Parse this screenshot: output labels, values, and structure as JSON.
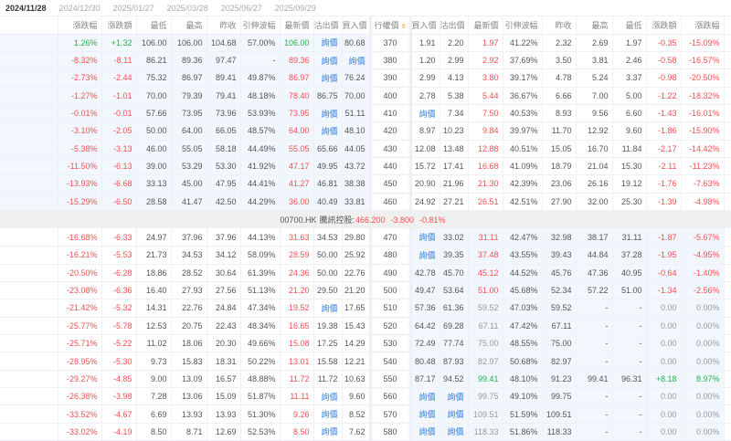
{
  "tabs": [
    "2024/11/28",
    "2024/12/30",
    "2025/01/27",
    "2025/03/28",
    "2025/06/27",
    "2025/09/29"
  ],
  "active_tab": 0,
  "colors": {
    "up": "#21b14b",
    "down": "#f25050",
    "link": "#2f7de1",
    "itm_bg": "#f2f7fd",
    "sort": "#f59a23"
  },
  "headers": {
    "calls": [
      "漲跌幅",
      "漲跌額",
      "最低",
      "最高",
      "昨收",
      "引伸波幅",
      "最新價",
      "沽出價",
      "買入價"
    ],
    "strike": "行權價",
    "puts": [
      "買入價",
      "沽出價",
      "最新價",
      "引伸波幅",
      "昨收",
      "最高",
      "最低",
      "漲跌額",
      "漲跌幅"
    ]
  },
  "sort_icon": "sort-icon",
  "quote_label": "詢價",
  "underlying": {
    "code": "00700.HK",
    "name": "騰訊控股:",
    "price": "466.200",
    "change": "-3.800",
    "change_pct": "-0.81%"
  },
  "rows_above": [
    {
      "strike": "370",
      "calls": [
        "1.26%",
        "+1.32",
        "106.00",
        "106.00",
        "104.68",
        "57.00%",
        "106.00",
        "詢價",
        "80.68"
      ],
      "puts": [
        "1.91",
        "2.20",
        "1.97",
        "41.22%",
        "2.32",
        "2.69",
        "1.97",
        "-0.35",
        "-15.09%"
      ]
    },
    {
      "strike": "380",
      "calls": [
        "-8.32%",
        "-8.11",
        "86.21",
        "89.36",
        "97.47",
        "-",
        "89.36",
        "詢價",
        "詢價"
      ],
      "puts": [
        "1.20",
        "2.99",
        "2.92",
        "37.69%",
        "3.50",
        "3.81",
        "2.46",
        "-0.58",
        "-16.57%"
      ]
    },
    {
      "strike": "390",
      "calls": [
        "-2.73%",
        "-2.44",
        "75.32",
        "86.97",
        "89.41",
        "49.87%",
        "86.97",
        "詢價",
        "76.24"
      ],
      "puts": [
        "2.99",
        "4.13",
        "3.80",
        "39.17%",
        "4.78",
        "5.24",
        "3.37",
        "-0.98",
        "-20.50%"
      ]
    },
    {
      "strike": "400",
      "calls": [
        "-1.27%",
        "-1.01",
        "70.00",
        "79.39",
        "79.41",
        "48.18%",
        "78.40",
        "86.75",
        "70.00"
      ],
      "puts": [
        "2.78",
        "5.38",
        "5.44",
        "36.67%",
        "6.66",
        "7.00",
        "5.00",
        "-1.22",
        "-18.32%"
      ]
    },
    {
      "strike": "410",
      "calls": [
        "-0.01%",
        "-0.01",
        "57.66",
        "73.95",
        "73.96",
        "53.93%",
        "73.95",
        "詢價",
        "51.11"
      ],
      "puts": [
        "詢價",
        "7.34",
        "7.50",
        "40.53%",
        "8.93",
        "9.56",
        "6.60",
        "-1.43",
        "-16.01%"
      ]
    },
    {
      "strike": "420",
      "calls": [
        "-3.10%",
        "-2.05",
        "50.00",
        "64.00",
        "66.05",
        "48.57%",
        "64.00",
        "詢價",
        "48.10"
      ],
      "puts": [
        "8.97",
        "10.23",
        "9.84",
        "39.97%",
        "11.70",
        "12.92",
        "9.60",
        "-1.86",
        "-15.90%"
      ]
    },
    {
      "strike": "430",
      "calls": [
        "-5.38%",
        "-3.13",
        "46.00",
        "55.05",
        "58.18",
        "44.49%",
        "55.05",
        "65.66",
        "44.05"
      ],
      "puts": [
        "12.08",
        "13.48",
        "12.88",
        "40.51%",
        "15.05",
        "16.70",
        "11.84",
        "-2.17",
        "-14.42%"
      ]
    },
    {
      "strike": "440",
      "calls": [
        "-11.50%",
        "-6.13",
        "39.00",
        "53.29",
        "53.30",
        "41.92%",
        "47.17",
        "49.95",
        "43.72"
      ],
      "puts": [
        "15.72",
        "17.41",
        "16.68",
        "41.09%",
        "18.79",
        "21.04",
        "15.30",
        "-2.11",
        "-11.23%"
      ]
    },
    {
      "strike": "450",
      "calls": [
        "-13.93%",
        "-6.68",
        "33.13",
        "45.00",
        "47.95",
        "44.41%",
        "41.27",
        "46.81",
        "38.38"
      ],
      "puts": [
        "20.90",
        "21.96",
        "21.30",
        "42.39%",
        "23.06",
        "26.16",
        "19.12",
        "-1.76",
        "-7.63%"
      ]
    },
    {
      "strike": "460",
      "calls": [
        "-15.29%",
        "-6.50",
        "28.58",
        "41.47",
        "42.50",
        "44.29%",
        "36.00",
        "40.49",
        "33.81"
      ],
      "puts": [
        "24.92",
        "27.21",
        "26.51",
        "42.51%",
        "27.90",
        "32.00",
        "25.30",
        "-1.39",
        "-4.98%"
      ]
    }
  ],
  "rows_below": [
    {
      "strike": "470",
      "calls": [
        "-16.68%",
        "-6.33",
        "24.97",
        "37.96",
        "37.96",
        "44.13%",
        "31.63",
        "34.53",
        "29.80"
      ],
      "puts": [
        "詢價",
        "33.02",
        "31.11",
        "42.47%",
        "32.98",
        "38.17",
        "31.11",
        "-1.87",
        "-5.67%"
      ]
    },
    {
      "strike": "480",
      "calls": [
        "-16.21%",
        "-5.53",
        "21.73",
        "34.53",
        "34.12",
        "58.09%",
        "28.59",
        "50.00",
        "25.92"
      ],
      "puts": [
        "詢價",
        "39.35",
        "37.48",
        "43.55%",
        "39.43",
        "44.84",
        "37.28",
        "-1.95",
        "-4.95%"
      ]
    },
    {
      "strike": "490",
      "calls": [
        "-20.50%",
        "-6.28",
        "18.86",
        "28.52",
        "30.64",
        "61.39%",
        "24.36",
        "50.00",
        "22.76"
      ],
      "puts": [
        "42.78",
        "45.70",
        "45.12",
        "44.52%",
        "45.76",
        "47.36",
        "40.95",
        "-0.64",
        "-1.40%"
      ]
    },
    {
      "strike": "500",
      "calls": [
        "-23.08%",
        "-6.36",
        "16.40",
        "27.93",
        "27.56",
        "51.13%",
        "21.20",
        "29.50",
        "21.20"
      ],
      "puts": [
        "49.47",
        "53.64",
        "51.00",
        "45.68%",
        "52.34",
        "57.22",
        "51.00",
        "-1.34",
        "-2.56%"
      ]
    },
    {
      "strike": "510",
      "calls": [
        "-21.42%",
        "-5.32",
        "14.31",
        "22.76",
        "24.84",
        "47.34%",
        "19.52",
        "詢價",
        "17.65"
      ],
      "puts": [
        "57.36",
        "61.36",
        "59.52",
        "47.03%",
        "59.52",
        "-",
        "-",
        "0.00",
        "0.00%"
      ]
    },
    {
      "strike": "520",
      "calls": [
        "-25.77%",
        "-5.78",
        "12.53",
        "20.75",
        "22.43",
        "48.34%",
        "16.65",
        "19.38",
        "15.43"
      ],
      "puts": [
        "64.42",
        "69.28",
        "67.11",
        "47.42%",
        "67.11",
        "-",
        "-",
        "0.00",
        "0.00%"
      ]
    },
    {
      "strike": "530",
      "calls": [
        "-25.71%",
        "-5.22",
        "11.02",
        "18.06",
        "20.30",
        "49.66%",
        "15.08",
        "17.25",
        "14.29"
      ],
      "puts": [
        "72.49",
        "77.74",
        "75.00",
        "48.55%",
        "75.00",
        "-",
        "-",
        "0.00",
        "0.00%"
      ]
    },
    {
      "strike": "540",
      "calls": [
        "-28.95%",
        "-5.30",
        "9.73",
        "15.83",
        "18.31",
        "50.22%",
        "13.01",
        "15.58",
        "12.21"
      ],
      "puts": [
        "80.48",
        "87.93",
        "82.97",
        "50.68%",
        "82.97",
        "-",
        "-",
        "0.00",
        "0.00%"
      ]
    },
    {
      "strike": "550",
      "calls": [
        "-29.27%",
        "-4.85",
        "9.00",
        "13.09",
        "16.57",
        "48.88%",
        "11.72",
        "11.72",
        "10.63"
      ],
      "puts": [
        "87.17",
        "94.52",
        "99.41",
        "48.10%",
        "91.23",
        "99.41",
        "96.31",
        "+8.18",
        "8.97%"
      ]
    },
    {
      "strike": "560",
      "calls": [
        "-26.38%",
        "-3.98",
        "7.28",
        "13.06",
        "15.09",
        "51.87%",
        "11.11",
        "詢價",
        "9.60"
      ],
      "puts": [
        "詢價",
        "詢價",
        "99.75",
        "49.10%",
        "99.75",
        "-",
        "-",
        "0.00",
        "0.00%"
      ]
    },
    {
      "strike": "570",
      "calls": [
        "-33.52%",
        "-4.67",
        "6.69",
        "13.93",
        "13.93",
        "51.30%",
        "9.26",
        "詢價",
        "8.52"
      ],
      "puts": [
        "詢價",
        "詢價",
        "109.51",
        "51.59%",
        "109.51",
        "-",
        "-",
        "0.00",
        "0.00%"
      ]
    },
    {
      "strike": "580",
      "calls": [
        "-33.02%",
        "-4.19",
        "8.50",
        "8.71",
        "12.69",
        "52.53%",
        "8.50",
        "詢價",
        "7.62"
      ],
      "puts": [
        "詢價",
        "詢價",
        "118.33",
        "51.86%",
        "118.33",
        "-",
        "-",
        "0.00",
        "0.00%"
      ]
    }
  ]
}
